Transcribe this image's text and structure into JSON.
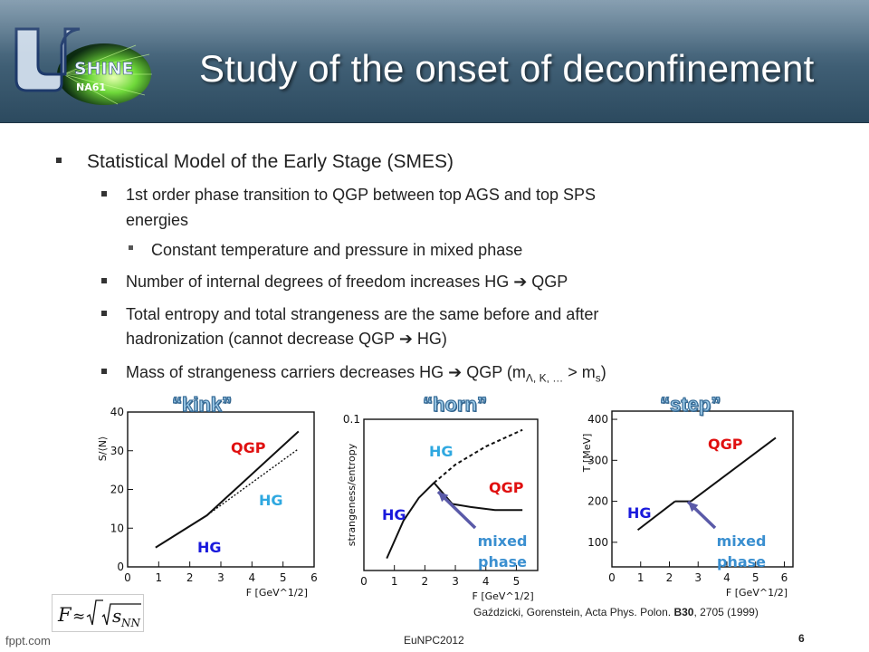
{
  "header": {
    "title": "Study of the onset of deconfinement",
    "logo_text": "SHINE",
    "logo_subtext": "NA61"
  },
  "bullets": [
    {
      "level": 1,
      "text": "Statistical Model of the Early Stage (SMES)"
    },
    {
      "level": 2,
      "lines": [
        "1st order phase transition to QGP between top AGS and top SPS",
        "energies"
      ]
    },
    {
      "level": 3,
      "text": "Constant temperature and pressure in mixed phase"
    },
    {
      "level": 2,
      "text": "Number of internal degrees of freedom increases HG ➔ QGP"
    },
    {
      "level": 2,
      "lines": [
        "Total entropy and total strangeness are the same before and after",
        "hadronization (cannot decrease QGP ➔ HG)"
      ]
    },
    {
      "level": 2,
      "parts": {
        "pre": "Mass of strangeness carriers decreases HG ➔ QGP (m",
        "sub": "Λ, K, …",
        "post": " > m",
        "sub2": "s",
        "end": ")"
      }
    }
  ],
  "figure": {
    "citation": {
      "pre": "Gaździcki, Gorenstein, Acta Phys. Polon. ",
      "bold": "B30",
      "post": ", 2705 (1999)"
    },
    "colors": {
      "qgp": "#e01010",
      "hg": "#1a1adc",
      "hg_light": "#2fa8e0",
      "mixed": "#3a8fd0",
      "arrow": "#5a5aa8"
    }
  },
  "chart_data": [
    {
      "type": "line",
      "title": "“kink”",
      "ylabel": "S/⟨N⟩",
      "xlabel": "F [GeV^1/2]",
      "xticks": [
        0,
        1,
        2,
        3,
        4,
        5,
        6
      ],
      "yticks": [
        0,
        10,
        20,
        30,
        40
      ],
      "xlim": [
        0,
        6
      ],
      "ylim": [
        0,
        40
      ],
      "series": [
        {
          "name": "HG",
          "x": [
            0.9,
            2.55,
            5.5
          ],
          "y": [
            5,
            13.3,
            30.5
          ],
          "style": "dotted"
        },
        {
          "name": "QGP",
          "x": [
            0.9,
            2.55,
            5.5
          ],
          "y": [
            5,
            13.3,
            35
          ],
          "style": "solid"
        }
      ],
      "labels": {
        "qgp": "QGP",
        "hg_upper": "HG",
        "hg_lower": "HG"
      }
    },
    {
      "type": "line",
      "title": "“horn”",
      "ylabel": "strangeness/entropy",
      "xlabel": "F [GeV^1/2]",
      "xticks": [
        0,
        1,
        2,
        3,
        4,
        5
      ],
      "yticks": [
        0,
        0.1
      ],
      "ytick_labels": [
        "",
        "0.1"
      ],
      "xlim": [
        0,
        5.7
      ],
      "ylim": [
        0,
        0.1
      ],
      "series": [
        {
          "name": "HG",
          "x": [
            0.75,
            1.3,
            1.8,
            2.3,
            3,
            4,
            5.2
          ],
          "y": [
            0.008,
            0.033,
            0.048,
            0.058,
            0.07,
            0.082,
            0.093
          ],
          "style": "solid+dashed"
        },
        {
          "name": "QGP",
          "x": [
            2.3,
            2.9,
            3.5,
            4.3,
            5.2
          ],
          "y": [
            0.058,
            0.044,
            0.042,
            0.04,
            0.04
          ],
          "style": "solid"
        }
      ],
      "labels": {
        "hg_upper": "HG",
        "qgp": "QGP",
        "hg_lower": "HG",
        "mixed": [
          "mixed",
          "phase"
        ]
      }
    },
    {
      "type": "line",
      "title": "“step”",
      "ylabel": "T [MeV]",
      "xlabel": "F [GeV^1/2]",
      "xticks": [
        0,
        1,
        2,
        3,
        4,
        5,
        6
      ],
      "yticks": [
        100,
        200,
        300,
        400
      ],
      "xlim": [
        0,
        6.3
      ],
      "ylim": [
        40,
        420
      ],
      "series": [
        {
          "name": "HG",
          "x": [
            0.9,
            2.2
          ],
          "y": [
            130,
            200
          ],
          "style": "solid"
        },
        {
          "name": "mixed",
          "x": [
            2.2,
            2.75
          ],
          "y": [
            200,
            200
          ],
          "style": "solid"
        },
        {
          "name": "QGP",
          "x": [
            2.75,
            5.7
          ],
          "y": [
            200,
            355
          ],
          "style": "solid"
        }
      ],
      "labels": {
        "qgp": "QGP",
        "hg": "HG",
        "mixed": [
          "mixed",
          "phase"
        ]
      }
    }
  ],
  "formula": {
    "lhs": "F",
    "approx": "≈",
    "var": "s",
    "sub": "NN"
  },
  "footer": {
    "site": "fppt.com",
    "conference": "EuNPC2012",
    "page": "6"
  }
}
